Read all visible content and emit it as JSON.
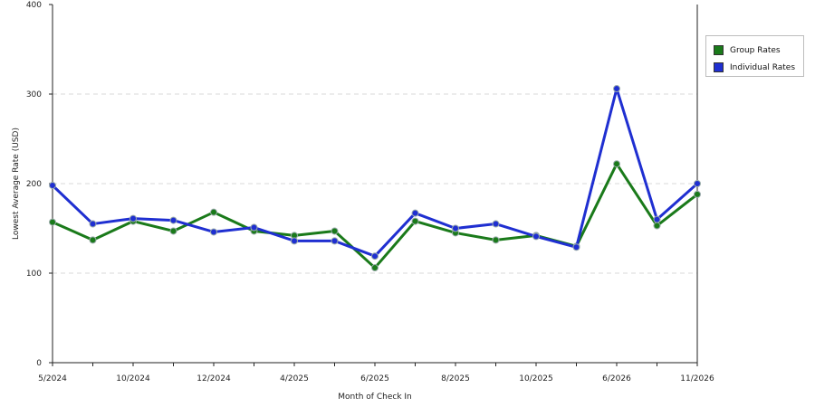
{
  "chart_data": {
    "type": "line",
    "title": "",
    "xlabel": "Month of Check In",
    "ylabel": "Lowest Average Rate (USD)",
    "ylim": [
      0,
      400
    ],
    "yticks": [
      0,
      100,
      200,
      300,
      400
    ],
    "grid": true,
    "legend_position": "right",
    "x_tick_labels": [
      "5/2024",
      "10/2024",
      "12/2024",
      "4/2025",
      "6/2025",
      "8/2025",
      "10/2025",
      "6/2026",
      "11/2026"
    ],
    "series": [
      {
        "name": "Group Rates",
        "color": "#1a7a1a",
        "values": [
          157,
          137,
          158,
          147,
          168,
          147,
          142,
          147,
          106,
          158,
          145,
          137,
          142,
          130,
          222,
          153,
          188
        ]
      },
      {
        "name": "Individual Rates",
        "color": "#1f2fd1",
        "values": [
          198,
          155,
          161,
          159,
          146,
          151,
          136,
          136,
          119,
          167,
          150,
          155,
          141,
          129,
          306,
          160,
          200
        ]
      }
    ]
  }
}
